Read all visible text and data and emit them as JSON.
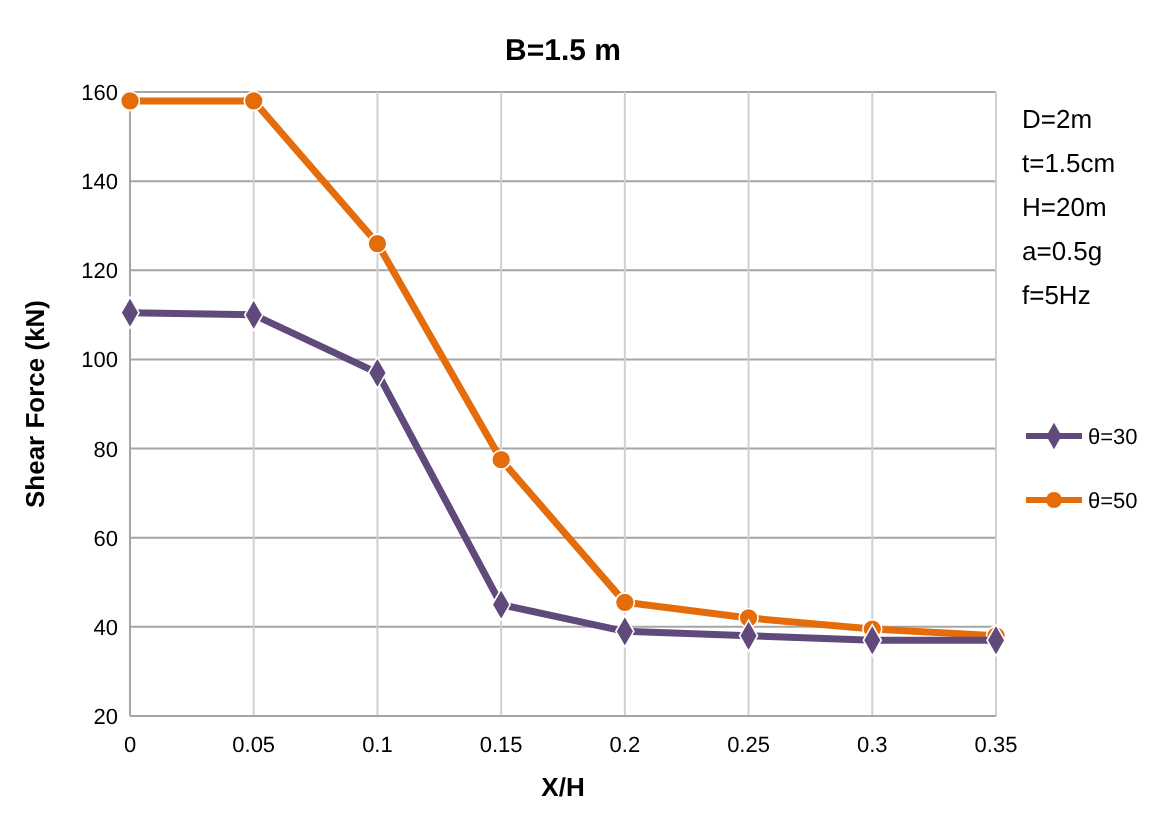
{
  "chart_data": {
    "type": "line",
    "title": "B=1.5 m",
    "xlabel": "X/H",
    "ylabel": "Shear Force (kN)",
    "x": [
      0,
      0.05,
      0.1,
      0.15,
      0.2,
      0.25,
      0.3,
      0.35
    ],
    "series": [
      {
        "name": "θ=30",
        "color": "#604a7b",
        "marker": "diamond",
        "values": [
          110.5,
          110,
          97,
          45,
          39,
          38,
          37,
          37
        ]
      },
      {
        "name": "θ=50",
        "color": "#e46c0a",
        "marker": "circle",
        "values": [
          158,
          158,
          126,
          77.5,
          45.5,
          42,
          39.5,
          38
        ]
      }
    ],
    "xlim": [
      0,
      0.35
    ],
    "xticks": [
      0,
      0.05,
      0.1,
      0.15,
      0.2,
      0.25,
      0.3,
      0.35
    ],
    "ylim": [
      20,
      160
    ],
    "yticks": [
      20,
      40,
      60,
      80,
      100,
      120,
      140,
      160
    ],
    "grid": true,
    "legend": "right",
    "line_style": "solid",
    "annotations": [
      "D=2m",
      "t=1.5cm",
      "H=20m",
      "a=0.5g",
      "f=5Hz"
    ]
  }
}
